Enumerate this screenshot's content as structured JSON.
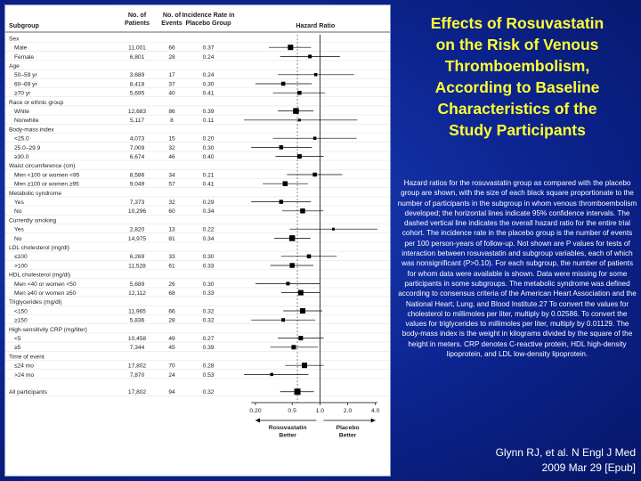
{
  "title": "Effects of Rosuvastatin\non the Risk of Venous\nThromboembolism,\nAccording to Baseline\nCharacteristics of the\nStudy Participants",
  "caption": "Hazard ratios for the rosuvastatin group as compared with the placebo group are shown, with the size of each black square proportionate to the number of participants in the subgroup in whom venous thromboembolism developed; the horizontal lines indicate 95% confidence intervals. The dashed vertical line indicates the overall hazard ratio for the entire trial cohort. The incidence rate in the placebo group is the number of events per 100 person-years of follow-up. Not shown are P values for tests of interaction between rosuvastatin and subgroup variables, each of which was nonsignificant (P>0.10). For each subgroup, the number of patients for whom data were available is shown. Data were missing for some participants in some subgroups. The metabolic syndrome was defined according to consensus criteria of the American Heart Association and the National Heart, Lung, and Blood Institute.27 To convert the values for cholesterol to millimoles per liter, multiply by 0.02586. To convert the values for triglycerides to millimoles per liter, multiply by 0.01129. The body-mass index is the weight in kilograms divided by the square of the height in meters. CRP denotes C-reactive protein, HDL high-density lipoprotein, and LDL low-density lipoprotein.",
  "citation": {
    "line1": "Glynn RJ, et al. N Engl J Med",
    "line2": "2009 Mar 29 [Epub]"
  },
  "colors": {
    "title": "#ffff33",
    "background": "#0c2490",
    "marker": "#000000"
  },
  "chart_data": {
    "type": "forest",
    "xscale": "log",
    "xlim": [
      0.15,
      4.5
    ],
    "xticks": [
      "0.20",
      "0.5",
      "1.0",
      "2.0",
      "4.0"
    ],
    "overall_hr": 0.57,
    "headers": {
      "subgroup": "Subgroup",
      "patients": "No. of\nPatients",
      "events": "No. of\nEvents",
      "rate": "Incidence Rate in\nPlacebo Group",
      "hr": "Hazard Ratio"
    },
    "favor_left": "Rosuvastatin\nBetter",
    "favor_right": "Placebo\nBetter",
    "rows": [
      {
        "label": "Sex",
        "header": true
      },
      {
        "label": "Male",
        "patients": "11,001",
        "events": "66",
        "rate": "0.37",
        "hr": 0.48,
        "lo": 0.28,
        "hi": 0.8,
        "size": 6
      },
      {
        "label": "Female",
        "patients": "6,801",
        "events": "28",
        "rate": "0.24",
        "hr": 0.78,
        "lo": 0.37,
        "hi": 1.65,
        "size": 4
      },
      {
        "label": "Age",
        "header": true
      },
      {
        "label": "50–59 yr",
        "patients": "3,689",
        "events": "17",
        "rate": "0.24",
        "hr": 0.9,
        "lo": 0.35,
        "hi": 2.35,
        "size": 3.5
      },
      {
        "label": "60–69 yr",
        "patients": "8,418",
        "events": "37",
        "rate": "0.30",
        "hr": 0.4,
        "lo": 0.2,
        "hi": 0.82,
        "size": 4.5
      },
      {
        "label": "≥70 yr",
        "patients": "5,695",
        "events": "40",
        "rate": "0.41",
        "hr": 0.6,
        "lo": 0.31,
        "hi": 1.14,
        "size": 4.5
      },
      {
        "label": "Race or ethnic group",
        "header": true
      },
      {
        "label": "White",
        "patients": "12,683",
        "events": "86",
        "rate": "0.39",
        "hr": 0.55,
        "lo": 0.35,
        "hi": 0.85,
        "size": 6.5
      },
      {
        "label": "Nonwhite",
        "patients": "5,117",
        "events": "8",
        "rate": "0.11",
        "hr": 0.6,
        "lo": 0.14,
        "hi": 2.55,
        "size": 3
      },
      {
        "label": "Body-mass index",
        "header": true
      },
      {
        "label": "<25.0",
        "patients": "4,073",
        "events": "15",
        "rate": "0.20",
        "hr": 0.88,
        "lo": 0.31,
        "hi": 2.5,
        "size": 3.5
      },
      {
        "label": "25.0–29.9",
        "patients": "7,009",
        "events": "32",
        "rate": "0.30",
        "hr": 0.38,
        "lo": 0.18,
        "hi": 0.82,
        "size": 4.5
      },
      {
        "label": "≥30.0",
        "patients": "6,674",
        "events": "46",
        "rate": "0.40",
        "hr": 0.6,
        "lo": 0.33,
        "hi": 1.1,
        "size": 5
      },
      {
        "label": "Waist circumference (cm)",
        "header": true
      },
      {
        "label": "Men <100 or women <95",
        "patients": "8,586",
        "events": "34",
        "rate": "0.21",
        "hr": 0.88,
        "lo": 0.44,
        "hi": 1.75,
        "size": 4.5
      },
      {
        "label": "Men ≥100 or women ≥95",
        "patients": "9,049",
        "events": "57",
        "rate": "0.41",
        "hr": 0.42,
        "lo": 0.24,
        "hi": 0.74,
        "size": 5.5
      },
      {
        "label": "Metabolic syndrome",
        "header": true
      },
      {
        "label": "Yes",
        "patients": "7,373",
        "events": "32",
        "rate": "0.29",
        "hr": 0.38,
        "lo": 0.18,
        "hi": 0.8,
        "size": 4.5
      },
      {
        "label": "No",
        "patients": "10,296",
        "events": "60",
        "rate": "0.34",
        "hr": 0.65,
        "lo": 0.39,
        "hi": 1.09,
        "size": 5.5
      },
      {
        "label": "Currently smoking",
        "header": true
      },
      {
        "label": "Yes",
        "patients": "2,820",
        "events": "13",
        "rate": "0.22",
        "hr": 1.4,
        "lo": 0.47,
        "hi": 4.2,
        "size": 3
      },
      {
        "label": "No",
        "patients": "14,975",
        "events": "81",
        "rate": "0.34",
        "hr": 0.5,
        "lo": 0.32,
        "hi": 0.79,
        "size": 6.5
      },
      {
        "label": "LDL cholesterol (mg/dl)",
        "header": true
      },
      {
        "label": "≤100",
        "patients": "6,269",
        "events": "33",
        "rate": "0.30",
        "hr": 0.76,
        "lo": 0.38,
        "hi": 1.52,
        "size": 4.5
      },
      {
        "label": ">100",
        "patients": "11,528",
        "events": "61",
        "rate": "0.33",
        "hr": 0.5,
        "lo": 0.29,
        "hi": 0.85,
        "size": 5.5
      },
      {
        "label": "HDL cholesterol (mg/dl)",
        "header": true
      },
      {
        "label": "Men <40 or women <50",
        "patients": "5,689",
        "events": "26",
        "rate": "0.30",
        "hr": 0.45,
        "lo": 0.2,
        "hi": 1.0,
        "size": 4
      },
      {
        "label": "Men ≥40 or women ≥50",
        "patients": "12,112",
        "events": "68",
        "rate": "0.33",
        "hr": 0.62,
        "lo": 0.38,
        "hi": 1.0,
        "size": 6
      },
      {
        "label": "Triglycerides (mg/dl)",
        "header": true
      },
      {
        "label": "<150",
        "patients": "11,965",
        "events": "66",
        "rate": "0.32",
        "hr": 0.65,
        "lo": 0.4,
        "hi": 1.06,
        "size": 6
      },
      {
        "label": "≥150",
        "patients": "5,836",
        "events": "28",
        "rate": "0.32",
        "hr": 0.4,
        "lo": 0.18,
        "hi": 0.89,
        "size": 4
      },
      {
        "label": "High-sensitivity CRP (mg/liter)",
        "header": true
      },
      {
        "label": "<5",
        "patients": "10,458",
        "events": "49",
        "rate": "0.27",
        "hr": 0.62,
        "lo": 0.35,
        "hi": 1.1,
        "size": 5
      },
      {
        "label": "≥5",
        "patients": "7,344",
        "events": "45",
        "rate": "0.39",
        "hr": 0.52,
        "lo": 0.29,
        "hi": 0.95,
        "size": 5
      },
      {
        "label": "Time of event",
        "header": true
      },
      {
        "label": "≤24 mo",
        "patients": "17,802",
        "events": "70",
        "rate": "0.28",
        "hr": 0.68,
        "lo": 0.42,
        "hi": 1.1,
        "size": 6
      },
      {
        "label": ">24 mo",
        "patients": "7,870",
        "events": "24",
        "rate": "0.53",
        "hr": 0.3,
        "lo": 0.12,
        "hi": 0.75,
        "size": 3.5
      },
      {
        "label": "All participants",
        "patients": "17,802",
        "events": "94",
        "rate": "0.32",
        "hr": 0.57,
        "lo": 0.37,
        "hi": 0.86,
        "size": 7,
        "gapBefore": true
      }
    ]
  }
}
